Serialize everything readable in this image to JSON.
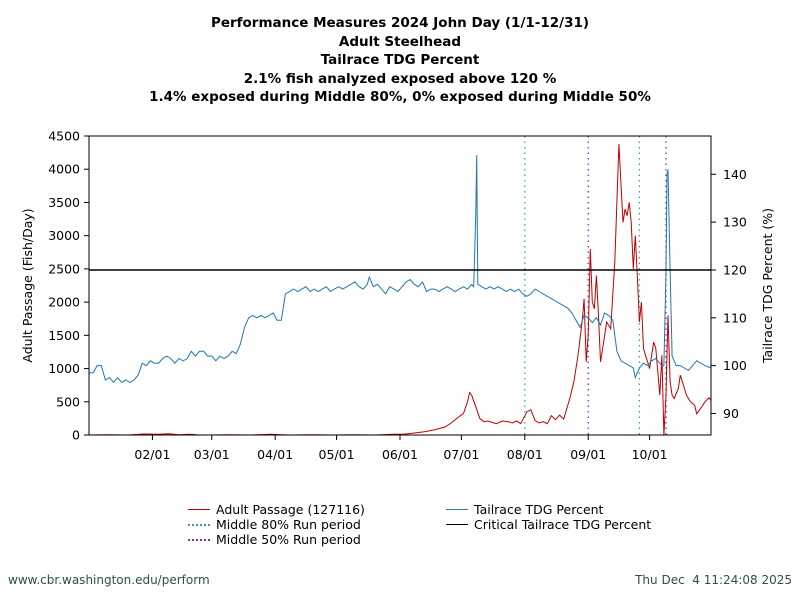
{
  "title_lines": [
    "Performance Measures 2024 John Day (1/1-12/31)",
    "Adult Steelhead",
    "Tailrace TDG Percent",
    "2.1% fish analyzed exposed above 120 %",
    "1.4% exposed during Middle 80%, 0% exposed during Middle 50%"
  ],
  "footer": {
    "url": "www.cbr.washington.edu/perform",
    "timestamp": "Thu Dec  4 11:24:08 2025"
  },
  "colors": {
    "passage": "#c00000",
    "tdg": "#1f77b4",
    "mid80": "#3ca0a0",
    "mid50": "#a020c0",
    "critical": "#000000"
  },
  "chart_data": {
    "type": "line",
    "title": "Performance Measures 2024 John Day (1/1-12/31)",
    "ylabel_left": "Adult Passage (Fish/Day)",
    "ylabel_right": "Tailrace TDG Percent (%)",
    "xlim_day": [
      1,
      305
    ],
    "ylim_left": [
      0,
      4500
    ],
    "ylim_right": [
      85.5,
      148
    ],
    "left_ticks": [
      0,
      500,
      1000,
      1500,
      2000,
      2500,
      3000,
      3500,
      4000,
      4500
    ],
    "right_ticks": [
      90,
      100,
      110,
      120,
      130,
      140
    ],
    "x_ticks": [
      {
        "day": 32,
        "label": "02/01"
      },
      {
        "day": 61,
        "label": "03/01"
      },
      {
        "day": 92,
        "label": "04/01"
      },
      {
        "day": 122,
        "label": "05/01"
      },
      {
        "day": 153,
        "label": "06/01"
      },
      {
        "day": 183,
        "label": "07/01"
      },
      {
        "day": 214,
        "label": "08/01"
      },
      {
        "day": 245,
        "label": "09/01"
      },
      {
        "day": 275,
        "label": "10/01"
      }
    ],
    "critical_tdg": 120,
    "middle80_days": [
      214,
      270
    ],
    "middle50_days": [
      245,
      283
    ],
    "passage_total": 127116,
    "series": [
      {
        "name": "Adult Passage",
        "axis": "left",
        "points": [
          [
            1,
            0
          ],
          [
            10,
            5
          ],
          [
            20,
            0
          ],
          [
            28,
            15
          ],
          [
            35,
            10
          ],
          [
            40,
            20
          ],
          [
            45,
            5
          ],
          [
            50,
            12
          ],
          [
            55,
            0
          ],
          [
            60,
            0
          ],
          [
            70,
            5
          ],
          [
            80,
            0
          ],
          [
            90,
            10
          ],
          [
            95,
            5
          ],
          [
            100,
            0
          ],
          [
            110,
            5
          ],
          [
            120,
            0
          ],
          [
            130,
            5
          ],
          [
            140,
            0
          ],
          [
            150,
            10
          ],
          [
            155,
            10
          ],
          [
            160,
            30
          ],
          [
            165,
            50
          ],
          [
            170,
            80
          ],
          [
            175,
            120
          ],
          [
            178,
            180
          ],
          [
            180,
            230
          ],
          [
            182,
            280
          ],
          [
            184,
            320
          ],
          [
            186,
            500
          ],
          [
            187,
            640
          ],
          [
            188,
            600
          ],
          [
            190,
            430
          ],
          [
            192,
            250
          ],
          [
            194,
            200
          ],
          [
            196,
            210
          ],
          [
            198,
            190
          ],
          [
            200,
            170
          ],
          [
            203,
            210
          ],
          [
            206,
            200
          ],
          [
            208,
            180
          ],
          [
            210,
            210
          ],
          [
            212,
            170
          ],
          [
            215,
            350
          ],
          [
            217,
            380
          ],
          [
            219,
            220
          ],
          [
            221,
            180
          ],
          [
            223,
            200
          ],
          [
            225,
            170
          ],
          [
            227,
            290
          ],
          [
            229,
            230
          ],
          [
            231,
            300
          ],
          [
            233,
            240
          ],
          [
            236,
            550
          ],
          [
            238,
            800
          ],
          [
            240,
            1200
          ],
          [
            242,
            1700
          ],
          [
            243,
            2050
          ],
          [
            244,
            1100
          ],
          [
            245,
            1500
          ],
          [
            246,
            2800
          ],
          [
            247,
            2000
          ],
          [
            248,
            1900
          ],
          [
            249,
            2400
          ],
          [
            250,
            1800
          ],
          [
            251,
            1100
          ],
          [
            252,
            1300
          ],
          [
            254,
            1700
          ],
          [
            256,
            1600
          ],
          [
            258,
            2600
          ],
          [
            260,
            4380
          ],
          [
            262,
            3200
          ],
          [
            263,
            3400
          ],
          [
            264,
            3300
          ],
          [
            265,
            3500
          ],
          [
            266,
            3200
          ],
          [
            267,
            2500
          ],
          [
            268,
            3000
          ],
          [
            269,
            2400
          ],
          [
            270,
            1700
          ],
          [
            271,
            2000
          ],
          [
            272,
            1300
          ],
          [
            273,
            1200
          ],
          [
            274,
            1100
          ],
          [
            275,
            1000
          ],
          [
            277,
            1400
          ],
          [
            278,
            1300
          ],
          [
            280,
            600
          ],
          [
            281,
            1200
          ],
          [
            282,
            0
          ],
          [
            283,
            600
          ],
          [
            284,
            1800
          ],
          [
            285,
            800
          ],
          [
            286,
            600
          ],
          [
            287,
            550
          ],
          [
            289,
            700
          ],
          [
            290,
            900
          ],
          [
            291,
            800
          ],
          [
            293,
            600
          ],
          [
            295,
            500
          ],
          [
            297,
            450
          ],
          [
            298,
            320
          ],
          [
            300,
            400
          ],
          [
            302,
            500
          ],
          [
            304,
            560
          ],
          [
            305,
            520
          ]
        ]
      },
      {
        "name": "Tailrace TDG Percent",
        "axis": "right",
        "points": [
          [
            1,
            98.5
          ],
          [
            3,
            98.5
          ],
          [
            5,
            100
          ],
          [
            7,
            100
          ],
          [
            9,
            97
          ],
          [
            11,
            97.5
          ],
          [
            13,
            96.5
          ],
          [
            15,
            97.5
          ],
          [
            17,
            96.5
          ],
          [
            19,
            97
          ],
          [
            21,
            96.5
          ],
          [
            23,
            97
          ],
          [
            25,
            98
          ],
          [
            27,
            100.5
          ],
          [
            29,
            100
          ],
          [
            31,
            101
          ],
          [
            33,
            100.5
          ],
          [
            35,
            100.5
          ],
          [
            37,
            101.5
          ],
          [
            39,
            102
          ],
          [
            41,
            101.5
          ],
          [
            43,
            100.5
          ],
          [
            45,
            101.5
          ],
          [
            47,
            101
          ],
          [
            49,
            101.5
          ],
          [
            51,
            103
          ],
          [
            53,
            102
          ],
          [
            55,
            103
          ],
          [
            57,
            103
          ],
          [
            59,
            102
          ],
          [
            61,
            102
          ],
          [
            63,
            101
          ],
          [
            65,
            102
          ],
          [
            67,
            101.5
          ],
          [
            69,
            102
          ],
          [
            71,
            103
          ],
          [
            73,
            102.5
          ],
          [
            75,
            104.5
          ],
          [
            77,
            108
          ],
          [
            79,
            110
          ],
          [
            81,
            110.5
          ],
          [
            83,
            110
          ],
          [
            85,
            110.5
          ],
          [
            87,
            110
          ],
          [
            89,
            110.5
          ],
          [
            91,
            111
          ],
          [
            93,
            109.5
          ],
          [
            95,
            109.5
          ],
          [
            97,
            115
          ],
          [
            99,
            115.5
          ],
          [
            101,
            116
          ],
          [
            103,
            115.5
          ],
          [
            105,
            116
          ],
          [
            107,
            116.5
          ],
          [
            109,
            115.5
          ],
          [
            111,
            116
          ],
          [
            113,
            115.5
          ],
          [
            115,
            116
          ],
          [
            117,
            116.5
          ],
          [
            119,
            115.5
          ],
          [
            121,
            116
          ],
          [
            123,
            116.5
          ],
          [
            125,
            116
          ],
          [
            127,
            116.5
          ],
          [
            129,
            117
          ],
          [
            131,
            117.5
          ],
          [
            133,
            116.5
          ],
          [
            135,
            116
          ],
          [
            137,
            117
          ],
          [
            138,
            118.5
          ],
          [
            140,
            116.5
          ],
          [
            142,
            117
          ],
          [
            144,
            116
          ],
          [
            146,
            115
          ],
          [
            148,
            116.5
          ],
          [
            150,
            116
          ],
          [
            152,
            115.5
          ],
          [
            154,
            116.5
          ],
          [
            156,
            117.5
          ],
          [
            158,
            118
          ],
          [
            160,
            117
          ],
          [
            162,
            116.5
          ],
          [
            164,
            117.5
          ],
          [
            166,
            115.5
          ],
          [
            168,
            116
          ],
          [
            170,
            116
          ],
          [
            172,
            115.5
          ],
          [
            174,
            116
          ],
          [
            176,
            116.5
          ],
          [
            178,
            116
          ],
          [
            180,
            115.5
          ],
          [
            182,
            116
          ],
          [
            184,
            116.5
          ],
          [
            186,
            116
          ],
          [
            188,
            117
          ],
          [
            189,
            116.5
          ],
          [
            190,
            131
          ],
          [
            190.5,
            144
          ],
          [
            191,
            117
          ],
          [
            193,
            116.5
          ],
          [
            195,
            116
          ],
          [
            197,
            116.5
          ],
          [
            199,
            116
          ],
          [
            201,
            116.5
          ],
          [
            203,
            116
          ],
          [
            205,
            115.5
          ],
          [
            207,
            116
          ],
          [
            209,
            115.5
          ],
          [
            211,
            116
          ],
          [
            213,
            115
          ],
          [
            215,
            114.5
          ],
          [
            217,
            115
          ],
          [
            219,
            116
          ],
          [
            221,
            115.5
          ],
          [
            223,
            115
          ],
          [
            225,
            114.5
          ],
          [
            227,
            114
          ],
          [
            229,
            113.5
          ],
          [
            231,
            113
          ],
          [
            233,
            112.5
          ],
          [
            235,
            112
          ],
          [
            237,
            111
          ],
          [
            239,
            109.5
          ],
          [
            241,
            108
          ],
          [
            243,
            110.5
          ],
          [
            245,
            110
          ],
          [
            247,
            109
          ],
          [
            249,
            110
          ],
          [
            251,
            108.5
          ],
          [
            253,
            111
          ],
          [
            255,
            110.5
          ],
          [
            257,
            109.5
          ],
          [
            259,
            103
          ],
          [
            261,
            101
          ],
          [
            263,
            100.5
          ],
          [
            265,
            100
          ],
          [
            267,
            99.5
          ],
          [
            268,
            97.5
          ],
          [
            270,
            99.5
          ],
          [
            272,
            100.5
          ],
          [
            274,
            100
          ],
          [
            276,
            101
          ],
          [
            278,
            101.5
          ],
          [
            280,
            100.5
          ],
          [
            281,
            100
          ],
          [
            282,
            100
          ],
          [
            283,
            120
          ],
          [
            283.5,
            140
          ],
          [
            284,
            141
          ],
          [
            285,
            120
          ],
          [
            286,
            102
          ],
          [
            288,
            100
          ],
          [
            290,
            100
          ],
          [
            292,
            99.5
          ],
          [
            294,
            99
          ],
          [
            296,
            100
          ],
          [
            298,
            101
          ],
          [
            300,
            100.5
          ],
          [
            302,
            100
          ],
          [
            305,
            99.5
          ]
        ]
      }
    ],
    "legend": [
      {
        "label": "Adult Passage (127116)",
        "kind": "line",
        "color": "#c00000"
      },
      {
        "label": "Middle 80% Run period",
        "kind": "dot",
        "color": "#3ca0a0"
      },
      {
        "label": "Middle 50% Run period",
        "kind": "dot",
        "color": "#a020c0"
      },
      {
        "label": "Tailrace TDG Percent",
        "kind": "line",
        "color": "#1f77b4"
      },
      {
        "label": "Critical Tailrace TDG Percent",
        "kind": "line",
        "color": "#000000"
      }
    ]
  }
}
